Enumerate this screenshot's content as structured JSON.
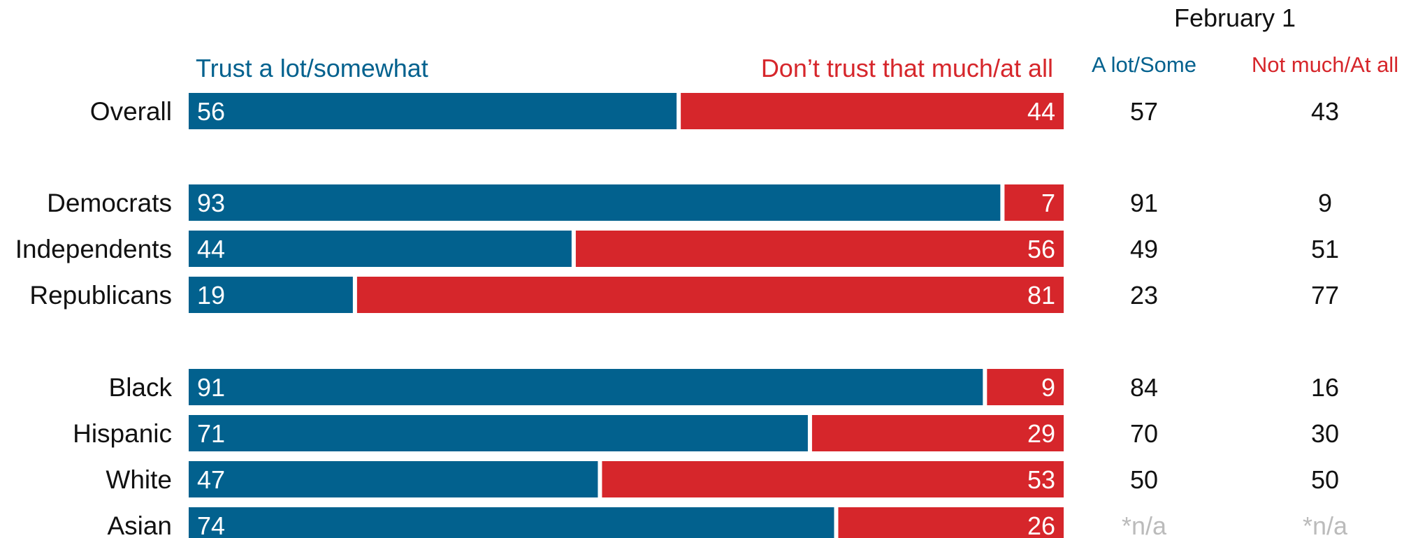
{
  "chart_data": {
    "type": "bar",
    "stacked": true,
    "orientation": "horizontal",
    "categories": [
      "Overall",
      "Democrats",
      "Independents",
      "Republicans",
      "Black",
      "Hispanic",
      "White",
      "Asian"
    ],
    "groups": [
      [
        "Overall"
      ],
      [
        "Democrats",
        "Independents",
        "Republicans"
      ],
      [
        "Black",
        "Hispanic",
        "White",
        "Asian"
      ]
    ],
    "series": [
      {
        "name": "Trust a lot/somewhat",
        "values": [
          56,
          93,
          44,
          19,
          91,
          71,
          47,
          74
        ]
      },
      {
        "name": "Don’t trust that much/at all",
        "values": [
          44,
          7,
          56,
          81,
          9,
          29,
          53,
          26
        ]
      }
    ],
    "xlim": [
      0,
      100
    ],
    "comparison_table": {
      "title": "February 1",
      "columns": [
        "A lot/Some",
        "Not much/At all"
      ],
      "rows": [
        [
          "57",
          "43"
        ],
        [
          "91",
          "9"
        ],
        [
          "49",
          "51"
        ],
        [
          "23",
          "77"
        ],
        [
          "84",
          "16"
        ],
        [
          "70",
          "30"
        ],
        [
          "50",
          "50"
        ],
        [
          "*n/a",
          "*n/a"
        ]
      ]
    }
  },
  "colors": {
    "trust": "#02618E",
    "distrust": "#D6262B",
    "na": "#BBBBBB",
    "text": "#111111"
  }
}
